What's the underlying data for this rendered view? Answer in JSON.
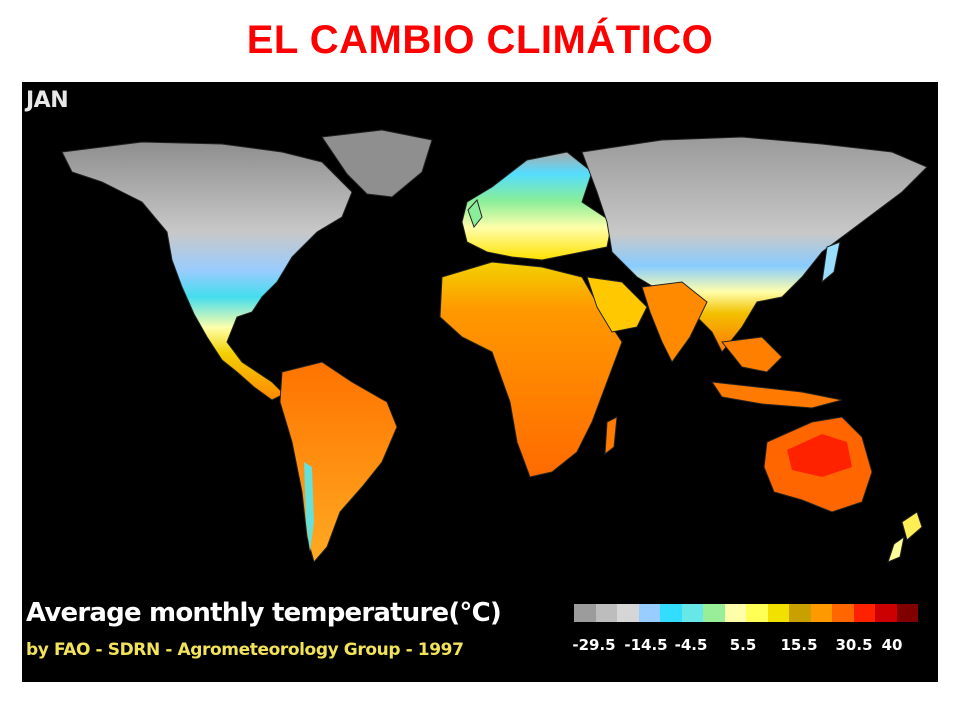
{
  "slide": {
    "title": "EL CAMBIO CLIMÁTICO"
  },
  "map": {
    "month": "JAN",
    "caption": "Average monthly temperature(°C)",
    "credit": "by FAO - SDRN - Agrometeorology Group - 1997",
    "ocean_color": "#000000"
  },
  "legend": {
    "colors": [
      "#9c9c9c",
      "#bdbdbd",
      "#d6d6d6",
      "#99ccff",
      "#33ddff",
      "#66e8e8",
      "#99ee99",
      "#ffffaa",
      "#ffff55",
      "#f2e000",
      "#c8a000",
      "#ff9900",
      "#ff6600",
      "#ff2200",
      "#cc0000",
      "#800000"
    ],
    "labels": [
      "-29.5",
      "-14.5",
      "-4.5",
      "5.5",
      "15.5",
      "30.5",
      "40"
    ]
  }
}
